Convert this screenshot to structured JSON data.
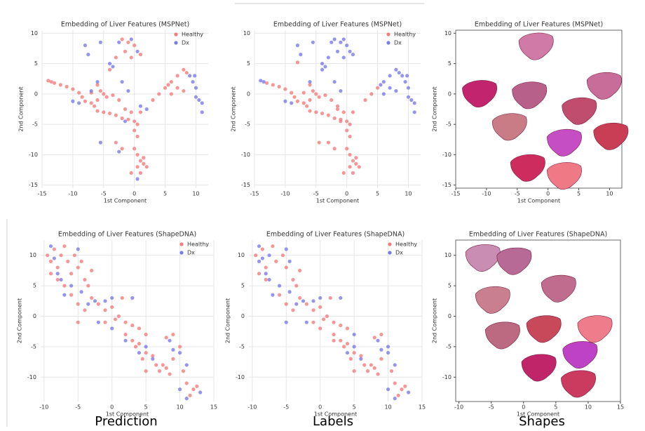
{
  "chart_data": [
    {
      "type": "scatter",
      "title": "Embedding of Liver Features (MSPNet)",
      "x_label": "1st Component",
      "y_label": "2nd Component",
      "xlim": [
        -15,
        12
      ],
      "ylim": [
        -15.5,
        10.5
      ],
      "xticks": [
        -15,
        -10,
        -5,
        0,
        5,
        10
      ],
      "yticks": [
        -15,
        -10,
        -5,
        0,
        5,
        10
      ],
      "grid": true,
      "legend": "upper right",
      "series": [
        {
          "name": "Healthy",
          "color": "#f47c7c",
          "x": [
            -14,
            -13.5,
            -13,
            -12,
            -11,
            -10,
            -9,
            -8.5,
            -8,
            -7,
            -6.5,
            -6,
            -5,
            -4,
            -3,
            -2,
            -1,
            0,
            0.5,
            -0.5,
            1,
            -1.5,
            -6,
            -5,
            -4.5,
            -3.5,
            -2.5,
            -5.5,
            -7,
            -6,
            0,
            0.5,
            0,
            0.5,
            1,
            1.5,
            0.5,
            1,
            2,
            1.5,
            -0.5,
            3,
            4,
            5,
            6,
            7,
            8,
            8.5,
            6,
            7,
            8,
            5.5,
            -2,
            -1,
            0,
            -1.5,
            -0.5,
            -3,
            -4,
            1,
            -3,
            -2
          ],
          "y": [
            2.2,
            2,
            1.8,
            1.5,
            1.2,
            0.8,
            0.2,
            -0.5,
            -1.2,
            -1.5,
            -2,
            -2.8,
            -3,
            -3.2,
            -3.5,
            -4,
            -4.2,
            -4.5,
            -5,
            -3,
            -3,
            -2.5,
            -1,
            0,
            -0.5,
            -0.2,
            -1,
            0.5,
            0.2,
            1.5,
            -6,
            -7,
            -9,
            -10,
            -11,
            -11.5,
            -12,
            -13,
            -12,
            -10.5,
            -13,
            -1,
            0,
            1,
            2,
            3,
            4,
            3.5,
            0,
            1,
            0.5,
            1.5,
            9,
            8.5,
            8,
            7,
            6,
            6,
            4,
            6.5,
            -8,
            -9
          ]
        },
        {
          "name": "Dx",
          "color": "#7b7be8",
          "x": [
            -8,
            -7.5,
            -5.5,
            -4,
            -3.5,
            -2.5,
            -0.5,
            0.5,
            -7,
            -5.5,
            -2.5,
            -1.5,
            1,
            2,
            9,
            9.5,
            10,
            10.5,
            11,
            11,
            10,
            9.8,
            0.5,
            -10,
            -9,
            -6,
            -2,
            -1
          ],
          "y": [
            8,
            6.5,
            8.5,
            5,
            4.5,
            8.5,
            9,
            7,
            0.5,
            -8,
            -9.5,
            -4.5,
            -2,
            -2.5,
            3,
            2,
            1,
            -1,
            -1.5,
            -3,
            -0.5,
            3,
            -14,
            -1.2,
            -1.5,
            2,
            2,
            0.5
          ]
        }
      ]
    },
    {
      "type": "scatter",
      "title": "Embedding of Liver Features (MSPNet)",
      "x_label": "1st Component",
      "y_label": "2nd Component",
      "xlim": [
        -15,
        12
      ],
      "ylim": [
        -15.5,
        10.5
      ],
      "xticks": [
        -15,
        -10,
        -5,
        0,
        5,
        10
      ],
      "yticks": [
        -15,
        -10,
        -5,
        0,
        5,
        10
      ],
      "grid": true,
      "legend": "upper right",
      "series": [
        {
          "name": "Healthy",
          "color": "#f47c7c",
          "x": [
            -13,
            -12,
            -11,
            -10,
            -9,
            -8.5,
            -8,
            -7,
            -6.5,
            -6,
            -5,
            -4,
            -3,
            -2,
            -1,
            0,
            0.5,
            -0.5,
            1,
            -1.5,
            -6,
            -5,
            -4.5,
            -3.5,
            -2.5,
            -5.5,
            -7,
            -6,
            0,
            0.5,
            0,
            0.5,
            1,
            1.5,
            0.5,
            1,
            2,
            1.5,
            -0.5,
            3,
            4,
            5,
            -8,
            -4.5,
            -3,
            -2,
            -1,
            -1.5
          ],
          "y": [
            1.8,
            1.5,
            1.2,
            0.8,
            0.2,
            -0.5,
            -1.2,
            -1.5,
            -2,
            -2.8,
            -3,
            -3.2,
            -3.5,
            -4,
            -4.2,
            -4.5,
            -5,
            -3,
            -3,
            -2.5,
            -1,
            0,
            -0.5,
            -0.2,
            -1,
            0.5,
            0.2,
            1.5,
            -6,
            -7,
            -9,
            -10,
            -11,
            -11.5,
            -12,
            -13,
            -12,
            -10.5,
            -13,
            -1,
            0,
            1,
            5.2,
            -8,
            -8,
            -9,
            -4.5,
            -2
          ]
        },
        {
          "name": "Dx",
          "color": "#7b7be8",
          "x": [
            -14,
            -13.5,
            -8,
            -7.5,
            -5.5,
            -4,
            -3.5,
            -2.5,
            -0.5,
            0.5,
            -2,
            -1,
            0,
            -1.5,
            -0.5,
            -3,
            -4,
            1,
            6,
            7,
            8,
            8.5,
            6,
            7,
            8,
            5.5,
            9,
            9.5,
            10,
            10.5,
            11,
            11,
            10,
            9.8,
            -10,
            -9,
            -6,
            -2,
            -1
          ],
          "y": [
            2.2,
            2,
            8,
            6.5,
            8.5,
            5,
            4.5,
            8.5,
            9,
            7,
            9,
            8.5,
            8,
            7,
            6,
            6,
            4,
            6.5,
            2,
            3,
            4,
            3.5,
            0,
            1,
            0.5,
            1.5,
            3,
            2,
            1,
            -1,
            -1.5,
            -3,
            -0.5,
            3,
            -1.2,
            -1.5,
            2,
            2,
            0.5
          ]
        }
      ]
    },
    {
      "type": "shapes",
      "title": "Embedding of Liver Features (MSPNet)",
      "x_label": "1st Component",
      "y_label": "2nd Component",
      "xlim": [
        -15,
        12
      ],
      "ylim": [
        -15.5,
        10.5
      ],
      "xticks": [
        -15,
        -10,
        -5,
        0,
        5,
        10
      ],
      "yticks": [
        -15,
        -10,
        -5,
        0,
        5,
        10
      ],
      "grid": false
    },
    {
      "type": "scatter",
      "title": "Embedding of Liver Features (ShapeDNA)",
      "x_label": "1st Component",
      "y_label": "2nd Component",
      "xlim": [
        -10.5,
        15
      ],
      "ylim": [
        -14,
        12.5
      ],
      "xticks": [
        -10,
        -5,
        0,
        5,
        10,
        15
      ],
      "yticks": [
        -10,
        -5,
        0,
        5,
        10
      ],
      "grid": true,
      "legend": "upper right",
      "series": [
        {
          "name": "Healthy",
          "color": "#f47c7c",
          "x": [
            -9.5,
            -9,
            -8.5,
            -8,
            -7.5,
            -7,
            -6.5,
            -6,
            -5.5,
            -5,
            -4.5,
            -4,
            -3.5,
            -3,
            -8,
            -7,
            -6,
            -5,
            -4,
            -3,
            -2,
            -1,
            0,
            -1,
            0.5,
            1,
            2,
            3,
            4,
            2,
            3,
            4,
            5,
            3.5,
            5,
            4.5,
            6,
            6.5,
            7,
            8,
            8.5,
            9,
            8,
            9,
            10,
            10.5,
            11,
            12,
            12.5,
            11.5,
            5,
            7.5,
            -9,
            -5,
            1.5
          ],
          "y": [
            10,
            9,
            11,
            8,
            10,
            11.5,
            9,
            7,
            10,
            8,
            9,
            6,
            5,
            7.5,
            6,
            5,
            3.5,
            2,
            1,
            3,
            2,
            1,
            1.5,
            -1,
            -0.5,
            0,
            -1,
            -1.5,
            -2,
            -3,
            -4,
            -4.5,
            -3,
            -5,
            -6,
            -7,
            -6.5,
            -8,
            -9,
            -8.5,
            -9.5,
            -7,
            -3.5,
            -3,
            -5,
            -9,
            -11,
            -12,
            -11.5,
            -13,
            -9,
            -8,
            7,
            -1,
            3
          ]
        },
        {
          "name": "Dx",
          "color": "#7b7be8",
          "x": [
            -9,
            -8.5,
            -8,
            -7.5,
            -7,
            -6,
            -5,
            -4.5,
            -3.5,
            -2.5,
            -1,
            0,
            -2,
            0,
            2,
            3,
            4,
            5,
            6,
            8.5,
            9,
            10,
            10,
            11,
            13,
            11
          ],
          "y": [
            11.5,
            9.5,
            7,
            6,
            3.5,
            5,
            11,
            4,
            2,
            2.5,
            2.5,
            3,
            -1,
            -2,
            -4,
            3,
            -6,
            -5,
            -7,
            -4,
            -5.5,
            -6,
            -12,
            -8,
            -12.5,
            -13.5
          ]
        }
      ]
    },
    {
      "type": "scatter",
      "title": "Embedding of Liver Features (ShapeDNA)",
      "x_label": "1st Component",
      "y_label": "2nd Component",
      "xlim": [
        -10.5,
        15
      ],
      "ylim": [
        -14,
        12.5
      ],
      "xticks": [
        -10,
        -5,
        0,
        5,
        10,
        15
      ],
      "yticks": [
        -10,
        -5,
        0,
        5,
        10
      ],
      "grid": true,
      "legend": "upper right",
      "series": [
        {
          "name": "Healthy",
          "color": "#f47c7c",
          "x": [
            -9.5,
            -8.5,
            -8,
            -7,
            -6.5,
            -5.5,
            -5,
            -4,
            -3.5,
            -3,
            -8,
            -6,
            -5,
            -4,
            -3,
            -2,
            -1,
            0,
            -1,
            0.5,
            1,
            2,
            3,
            4,
            2,
            3,
            4,
            3.5,
            5,
            4.5,
            6,
            6.5,
            7,
            8,
            8.5,
            9,
            8,
            9,
            10.5,
            11,
            12,
            12.5,
            11.5,
            5,
            7.5,
            -9,
            1.5,
            0,
            2
          ],
          "y": [
            10,
            11,
            8,
            11.5,
            9,
            10,
            8,
            6,
            5,
            7.5,
            6,
            3.5,
            2,
            1,
            3,
            2,
            1,
            1.5,
            -1,
            -0.5,
            0,
            -1,
            -1.5,
            -2,
            -3,
            -4,
            -4.5,
            -5,
            -6,
            -7,
            -6.5,
            -8,
            -9,
            -8.5,
            -9.5,
            -7,
            -3.5,
            -3,
            -9,
            -11,
            -12,
            -11.5,
            -13,
            -9,
            -8,
            7,
            3,
            -2,
            -4
          ]
        },
        {
          "name": "Dx",
          "color": "#7b7be8",
          "x": [
            -9,
            -9,
            -8.5,
            -8,
            -7.5,
            -7.5,
            -7,
            -6,
            -5,
            -4.5,
            -4.5,
            -3.5,
            -2.5,
            -1,
            0,
            -2,
            -5,
            3,
            4,
            5,
            6,
            8.5,
            9,
            10,
            10,
            11,
            13,
            11,
            5,
            10
          ],
          "y": [
            11.5,
            9,
            9.5,
            7,
            6,
            10,
            3.5,
            5,
            11,
            4,
            9,
            2,
            2.5,
            2.5,
            3,
            -1,
            -1,
            3,
            -6,
            -5,
            -7,
            -4,
            -5.5,
            -6,
            -12,
            -8,
            -12.5,
            -13.5,
            -3,
            -5
          ]
        }
      ]
    },
    {
      "type": "shapes",
      "title": "Embedding of Liver Features (ShapeDNA)",
      "x_label": "1st Component",
      "y_label": "2nd Component",
      "xlim": [
        -10.5,
        15
      ],
      "ylim": [
        -14,
        12.5
      ],
      "xticks": [
        -10,
        -5,
        0,
        5,
        10,
        15
      ],
      "yticks": [
        -10,
        -5,
        0,
        5,
        10
      ],
      "grid": false
    }
  ],
  "captions": [
    "Prediction",
    "Labels",
    "Shapes"
  ]
}
